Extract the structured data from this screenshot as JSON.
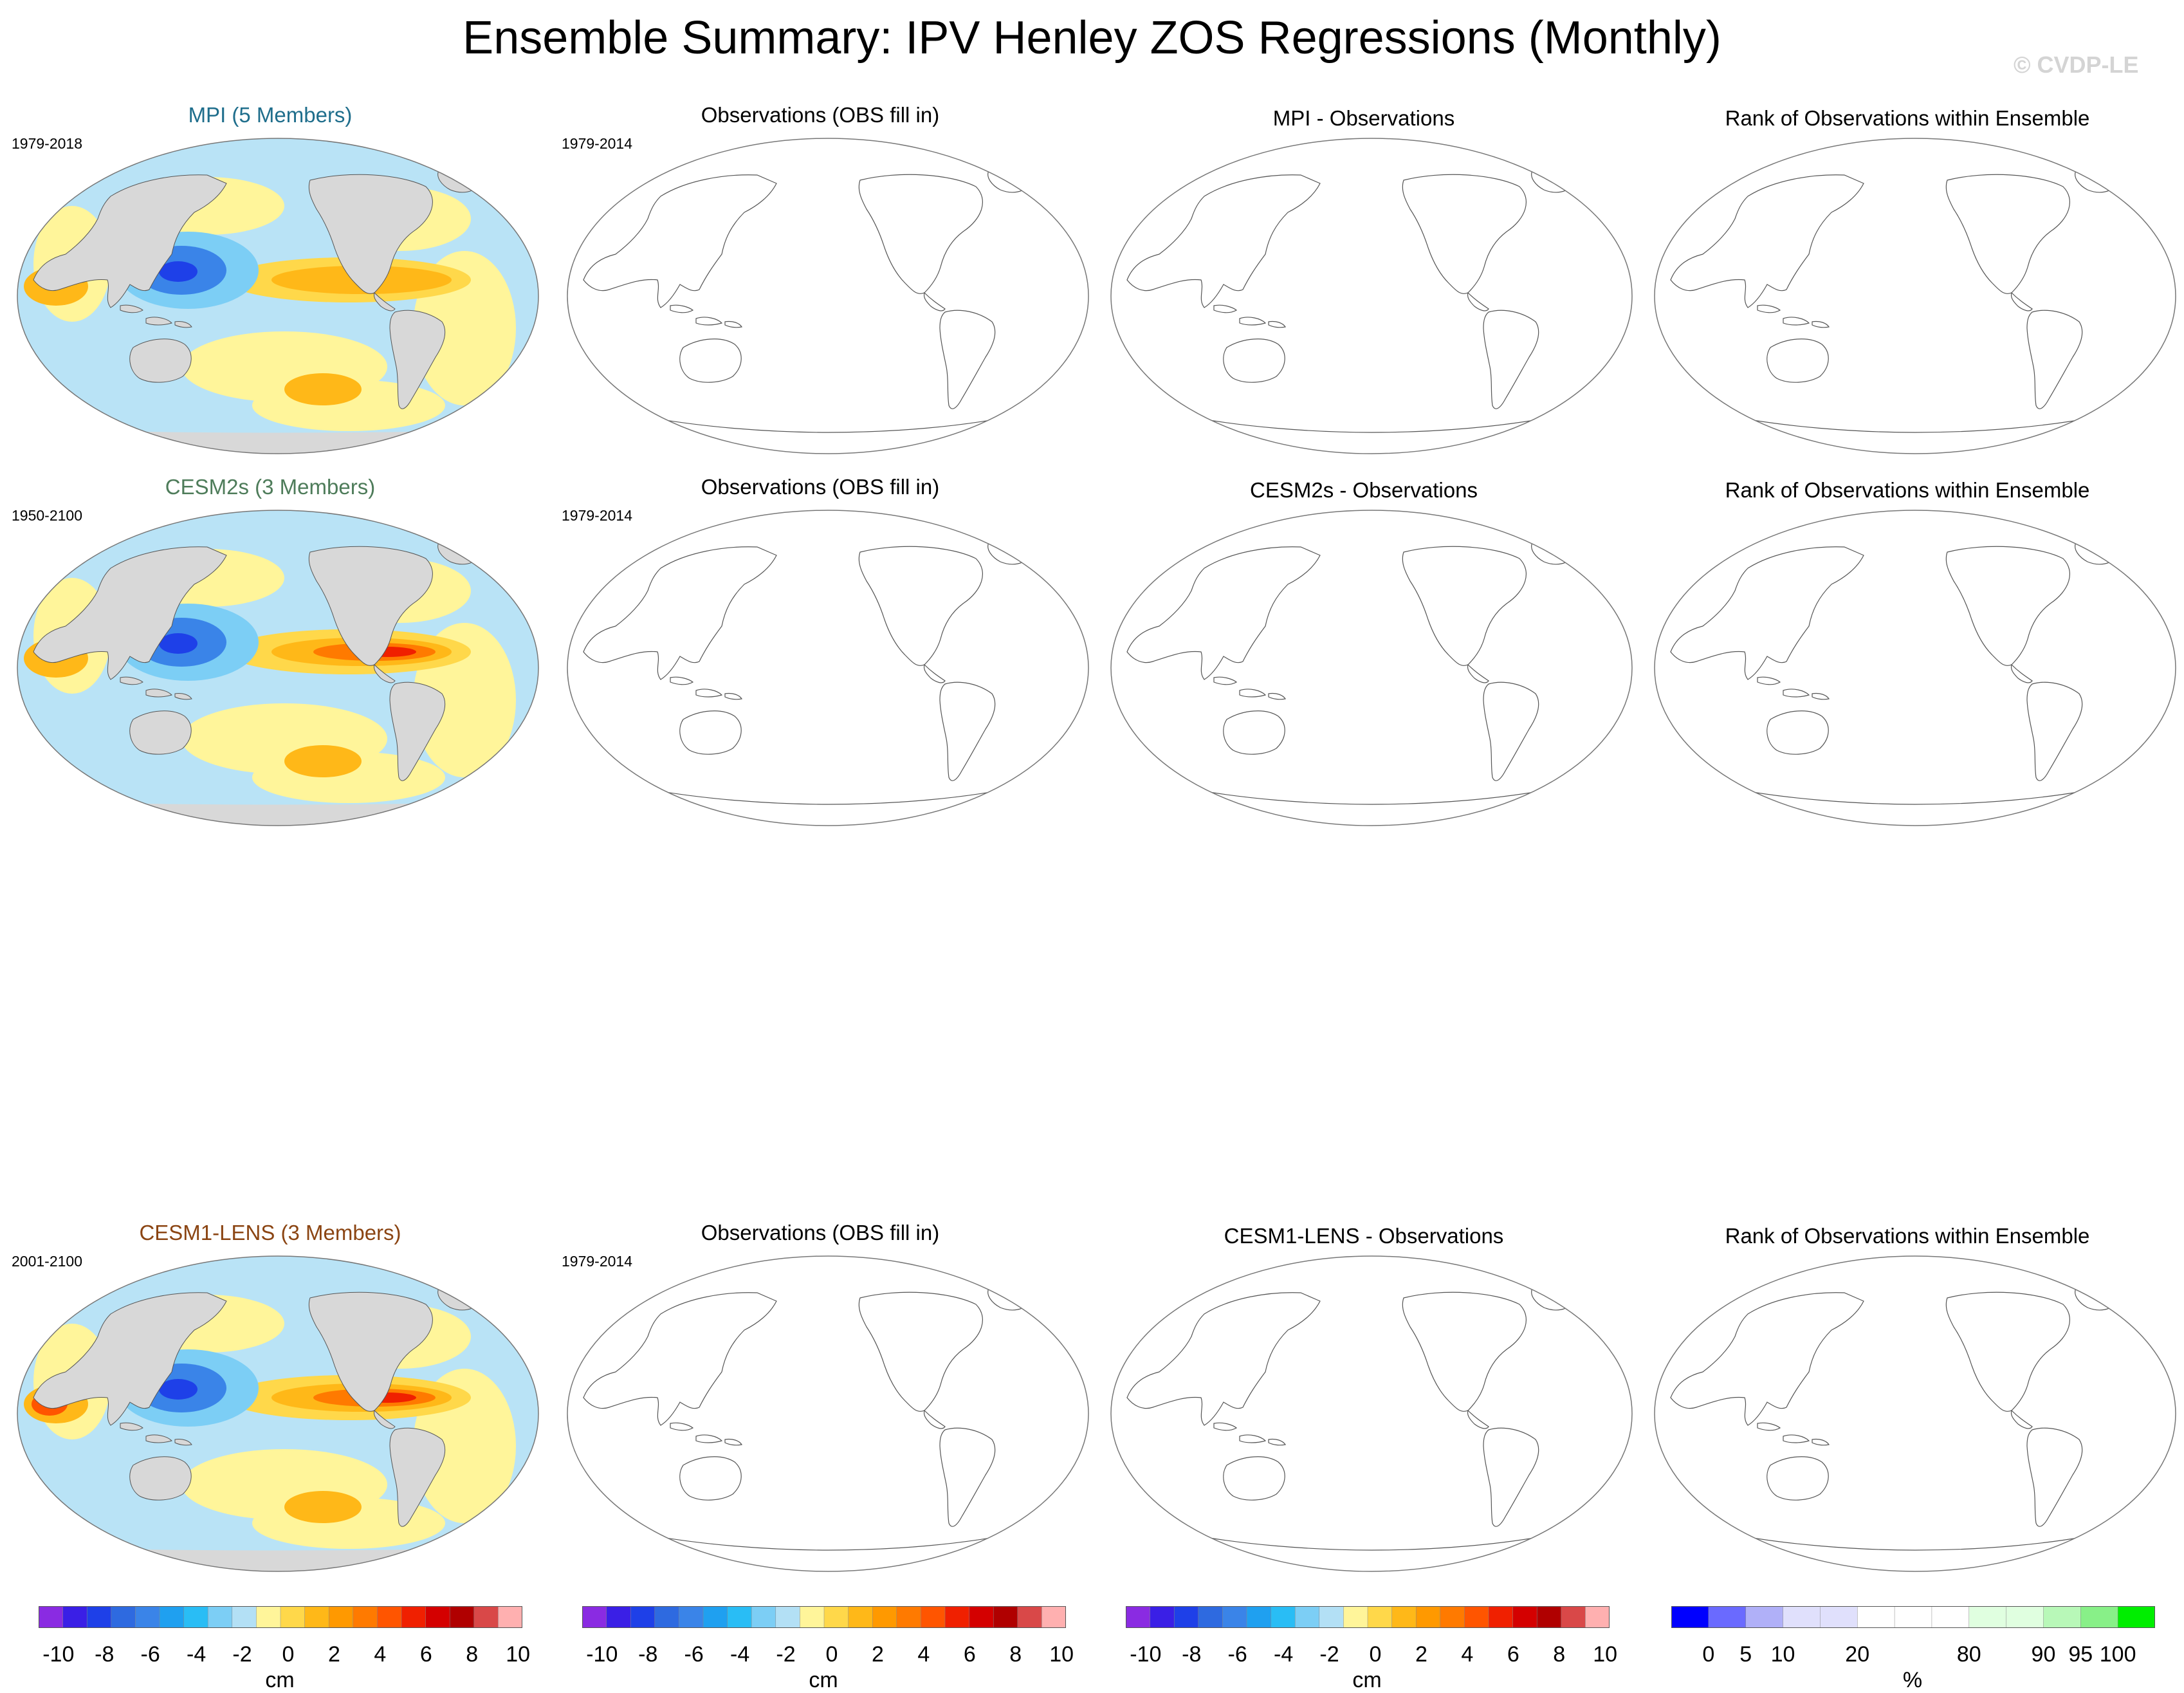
{
  "title": "Ensemble Summary: IPV Henley ZOS Regressions (Monthly)",
  "watermark": "© CVDP-LE",
  "chart_data": {
    "type": "map-grid",
    "rows": [
      {
        "model_title": "MPI (5 Members)",
        "model_color": "#1f6e8c",
        "model_years": "1979-2018",
        "obs_title": "Observations (OBS fill in)",
        "obs_years": "1979-2014",
        "diff_title": "MPI - Observations",
        "rank_title": "Rank of Observations within Ensemble"
      },
      {
        "model_title": "CESM2s (3 Members)",
        "model_color": "#4e7c5a",
        "model_years": "1950-2100",
        "obs_title": "Observations (OBS fill in)",
        "obs_years": "1979-2014",
        "diff_title": "CESM2s - Observations",
        "rank_title": "Rank of Observations within Ensemble"
      },
      {
        "model_title": "CESM1-LENS (3 Members)",
        "model_color": "#8b4513",
        "model_years": "2001-2100",
        "obs_title": "Observations (OBS fill in)",
        "obs_years": "1979-2014",
        "diff_title": "CESM1-LENS - Observations",
        "rank_title": "Rank of Observations within Ensemble"
      }
    ],
    "colorbar_cm": {
      "unit": "cm",
      "colors": [
        "#8a2be2",
        "#3a1fe6",
        "#1e40e8",
        "#2e6ae0",
        "#3a84e8",
        "#1fa0f0",
        "#29bdf5",
        "#7ccef5",
        "#b3e0f5",
        "#fff59a",
        "#ffd84a",
        "#ffb818",
        "#ff9900",
        "#ff7a00",
        "#ff5500",
        "#f02000",
        "#d40000",
        "#b00000",
        "#d94848",
        "#ffb0b0"
      ],
      "labels": [
        "-10",
        "-8",
        "-6",
        "-4",
        "-2",
        "0",
        "2",
        "4",
        "6",
        "8",
        "10"
      ]
    },
    "colorbar_rank": {
      "unit": "%",
      "colors": [
        "#0000ff",
        "#6a6aff",
        "#b0b0f8",
        "#e0e0fc",
        "#e0e0fc",
        "#ffffff",
        "#ffffff",
        "#ffffff",
        "#e0ffe0",
        "#e0ffe0",
        "#b8f8b8",
        "#88f088",
        "#00ee00"
      ],
      "labels": [
        "0",
        "5",
        "10",
        "20",
        "80",
        "90",
        "95",
        "100"
      ]
    }
  }
}
